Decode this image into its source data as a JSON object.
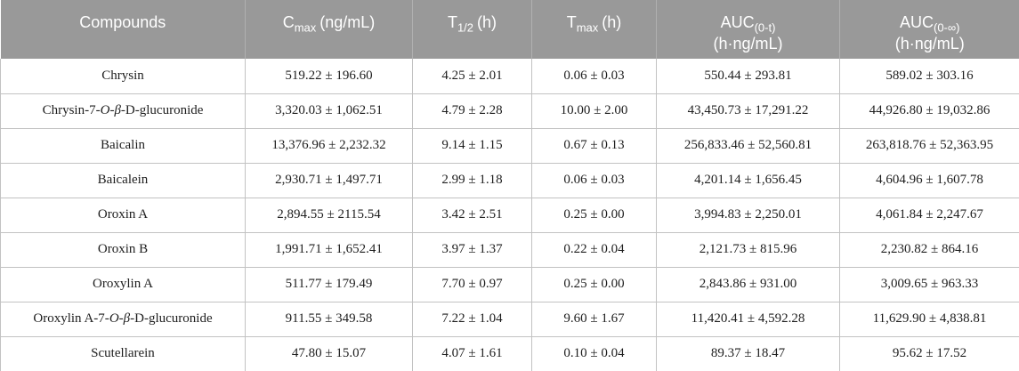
{
  "colors": {
    "header_bg": "#999999",
    "header_text": "#ffffff",
    "header_divider": "#b0b0b0",
    "body_border": "#c2c2c2",
    "body_text": "#1e1e1e"
  },
  "table": {
    "headers": {
      "compounds": "Compounds",
      "cmax_base": "C",
      "cmax_sub": "max",
      "cmax_unit": "(ng/mL)",
      "thalf_base": "T",
      "thalf_sub": "1/2",
      "thalf_unit": "(h)",
      "tmax_base": "T",
      "tmax_sub": "max",
      "tmax_unit": "(h)",
      "auc0t_base": "AUC",
      "auc0t_sub": "(0-t)",
      "auc0t_unit": "(h·ng/mL)",
      "auc0inf_base": "AUC",
      "auc0inf_sub": "(0-∞)",
      "auc0inf_unit": "(h·ng/mL)"
    },
    "rows": [
      {
        "compound": "Chrysin",
        "cmax": "519.22 ± 196.60",
        "thalf": "4.25 ± 2.01",
        "tmax": "0.06 ± 0.03",
        "auc0t": "550.44 ± 293.81",
        "auc0inf": "589.02 ± 303.16"
      },
      {
        "compound": "Chrysin-7-<i>O</i>-<i>β</i>-D-glucuronide",
        "cmax": "3,320.03 ± 1,062.51",
        "thalf": "4.79 ± 2.28",
        "tmax": "10.00 ± 2.00",
        "auc0t": "43,450.73 ± 17,291.22",
        "auc0inf": "44,926.80 ± 19,032.86"
      },
      {
        "compound": "Baicalin",
        "cmax": "13,376.96 ± 2,232.32",
        "thalf": "9.14 ± 1.15",
        "tmax": "0.67 ± 0.13",
        "auc0t": "256,833.46 ± 52,560.81",
        "auc0inf": "263,818.76 ± 52,363.95"
      },
      {
        "compound": "Baicalein",
        "cmax": "2,930.71 ± 1,497.71",
        "thalf": "2.99 ± 1.18",
        "tmax": "0.06 ± 0.03",
        "auc0t": "4,201.14 ± 1,656.45",
        "auc0inf": "4,604.96 ± 1,607.78"
      },
      {
        "compound": "Oroxin A",
        "cmax": "2,894.55 ± 2115.54",
        "thalf": "3.42 ± 2.51",
        "tmax": "0.25 ± 0.00",
        "auc0t": "3,994.83 ± 2,250.01",
        "auc0inf": "4,061.84 ± 2,247.67"
      },
      {
        "compound": "Oroxin B",
        "cmax": "1,991.71 ± 1,652.41",
        "thalf": "3.97 ± 1.37",
        "tmax": "0.22 ± 0.04",
        "auc0t": "2,121.73 ± 815.96",
        "auc0inf": "2,230.82 ± 864.16"
      },
      {
        "compound": "Oroxylin A",
        "cmax": "511.77 ± 179.49",
        "thalf": "7.70 ± 0.97",
        "tmax": "0.25 ± 0.00",
        "auc0t": "2,843.86 ± 931.00",
        "auc0inf": "3,009.65 ± 963.33"
      },
      {
        "compound": "Oroxylin A-7-<i>O</i>-<i>β</i>-D-glucuronide",
        "cmax": "911.55 ± 349.58",
        "thalf": "7.22 ± 1.04",
        "tmax": "9.60 ± 1.67",
        "auc0t": "11,420.41 ± 4,592.28",
        "auc0inf": "11,629.90 ± 4,838.81"
      },
      {
        "compound": "Scutellarein",
        "cmax": "47.80 ± 15.07",
        "thalf": "4.07 ± 1.61",
        "tmax": "0.10 ± 0.04",
        "auc0t": "89.37 ± 18.47",
        "auc0inf": "95.62 ± 17.52"
      }
    ]
  }
}
